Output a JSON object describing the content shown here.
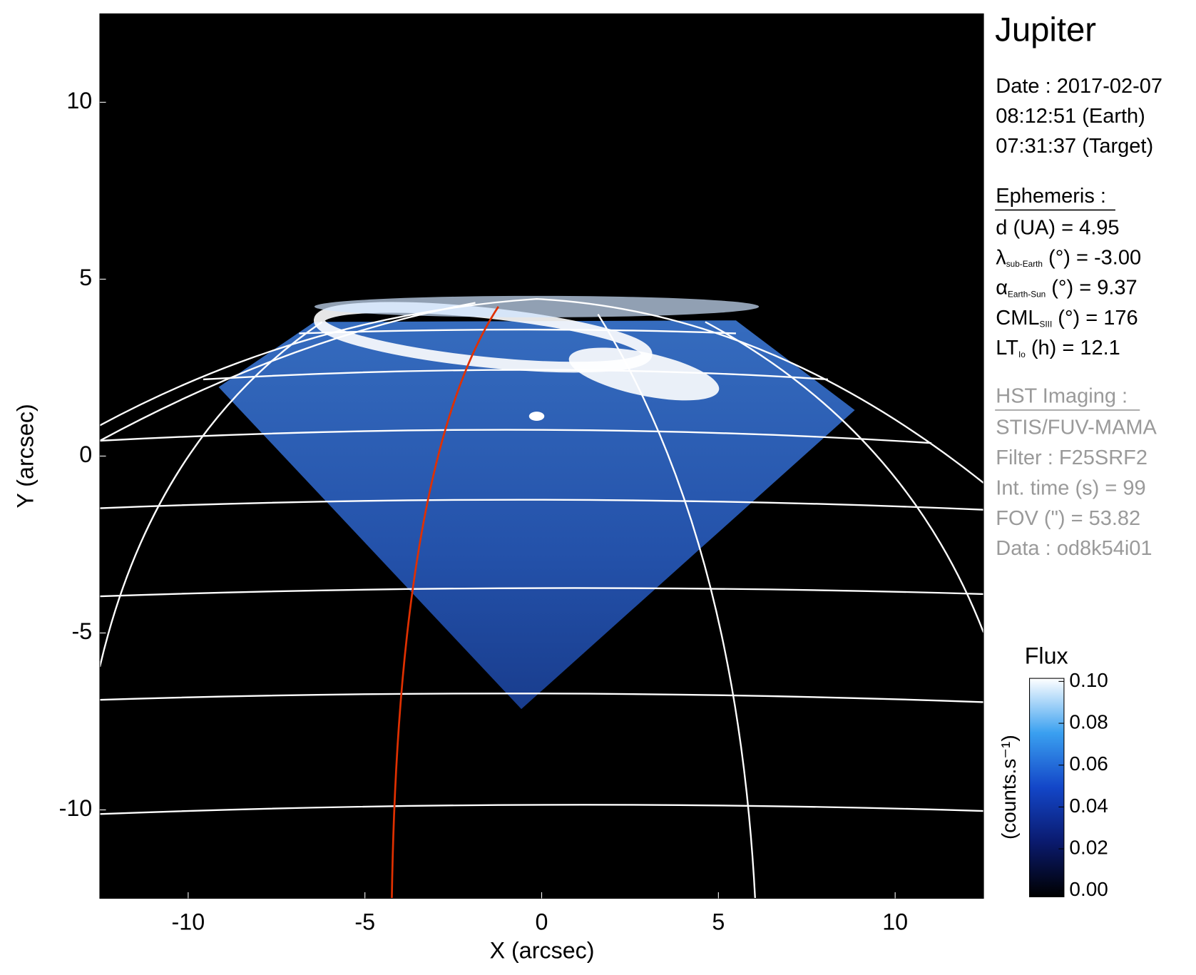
{
  "chart_data": {
    "type": "image",
    "title": "Jupiter",
    "xlabel": "X (arcsec)",
    "ylabel": "Y (arcsec)",
    "xlim": [
      -12.5,
      12.5
    ],
    "ylim": [
      -12.5,
      12.5
    ],
    "xticks": [
      -10,
      -5,
      0,
      5,
      10
    ],
    "yticks": [
      -10,
      -5,
      0,
      5,
      10
    ],
    "colorbar": {
      "label": "Flux",
      "unit": "(counts.s⁻¹)",
      "lim": [
        0,
        0.1
      ],
      "ticks": [
        {
          "value": 0,
          "label": "0.00"
        },
        {
          "value": 0.02,
          "label": "0.02"
        },
        {
          "value": 0.04,
          "label": "0.04"
        },
        {
          "value": 0.06,
          "label": "0.06"
        },
        {
          "value": 0.08,
          "label": "0.08"
        },
        {
          "value": 0.1,
          "label": "0.10"
        }
      ]
    },
    "info": {
      "date_lines": [
        "Date : 2017-02-07",
        "08:12:51 (Earth)",
        "07:31:37 (Target)"
      ],
      "ephemeris_title": "Ephemeris :",
      "ephemeris": [
        {
          "symbol": "d (UA)    = 4.95"
        },
        {
          "symbol": "λ",
          "sub": "sub-Earth",
          "rest": " (°) = -3.00"
        },
        {
          "symbol": "α",
          "sub": "Earth-Sun",
          "rest": " (°) = 9.37"
        },
        {
          "symbol": "CML",
          "sub": "SIII",
          "rest": " (°) = 176"
        },
        {
          "symbol": "LT",
          "sub": "Io",
          "rest": " (h) = 12.1"
        }
      ],
      "hst_title": "HST Imaging :",
      "hst": [
        "STIS/FUV-MAMA",
        "Filter : F25SRF2",
        "Int. time (s) = 99",
        "FOV (\") = 53.82",
        "Data : od8k54i01"
      ]
    }
  }
}
